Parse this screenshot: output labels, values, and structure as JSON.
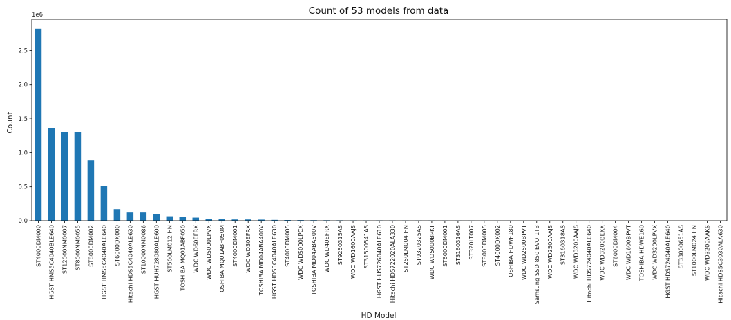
{
  "chart_data": {
    "type": "bar",
    "title": "Count of 53 models from data",
    "xlabel": "HD Model",
    "ylabel": "Count",
    "y_offset_label": "1e6",
    "ylim": [
      0,
      2.96
    ],
    "yticks": [
      0.0,
      0.5,
      1.0,
      1.5,
      2.0,
      2.5
    ],
    "ytick_labels": [
      "0.0",
      "0.5",
      "1.0",
      "1.5",
      "2.0",
      "2.5"
    ],
    "grid": false,
    "bar_color": "#1f77b4",
    "categories": [
      "ST4000DM000",
      "HGST HMS5C4040BLE640",
      "ST12000NM0007",
      "ST8000NM0055",
      "ST8000DM002",
      "HGST HMS5C4040ALE640",
      "ST6000DX000",
      "Hitachi HDS5C4040ALE630",
      "ST10000NM0086",
      "HGST HUH728080ALE600",
      "ST500LM012 HN",
      "TOSHIBA MQ01ABF050",
      "WDC WD60EFRX",
      "WDC WD5000LPVX",
      "TOSHIBA MQ01ABF050M",
      "ST4000DM001",
      "WDC WD30EFRX",
      "TOSHIBA MD04ABA400V",
      "HGST HDS5C4040ALE630",
      "ST4000DM005",
      "WDC WD5000LPCX",
      "TOSHIBA MD04ABA500V",
      "WDC WD40EFRX",
      "ST9250315AS",
      "WDC WD1600AAJS",
      "ST31500541AS",
      "HGST HUS726040ALE610",
      "Hitachi HDS722020ALA330",
      "ST250LM004 HN",
      "ST9320325AS",
      "WDC WD5000BPKT",
      "ST6000DM001",
      "ST3160316AS",
      "ST320LT007",
      "ST8000DM005",
      "ST4000DX002",
      "TOSHIBA HDWF180",
      "WDC WD2500BPVT",
      "Samsung SSD 850 EVO 1TB",
      "WDC WD2500AAJS",
      "ST3160318AS",
      "WDC WD3200AAJS",
      "Hitachi HDS724040ALE640",
      "WDC WD3200BEKX",
      "ST6000DM004",
      "WDC WD1600BPVT",
      "TOSHIBA HDWE160",
      "WDC WD3200LPVX",
      "HGST HDS724040ALE640",
      "ST33000651AS",
      "ST1000LM024 HN",
      "WDC WD3200AAKS",
      "Hitachi HDS5C3030ALA630"
    ],
    "values": [
      2.82,
      1.36,
      1.3,
      1.3,
      0.89,
      0.51,
      0.17,
      0.12,
      0.12,
      0.1,
      0.065,
      0.055,
      0.045,
      0.03,
      0.02,
      0.018,
      0.018,
      0.016,
      0.012,
      0.01,
      0.009,
      0.008,
      0.007,
      0.006,
      0.0055,
      0.005,
      0.0045,
      0.004,
      0.0035,
      0.003,
      0.0028,
      0.0025,
      0.0022,
      0.002,
      0.0015,
      0.0012,
      0.001,
      0.0008,
      0.0007,
      0.0006,
      0.0005,
      0.0004,
      0.0003,
      0.0003,
      0.0002,
      0.0002,
      0.0001,
      0.0001,
      0.0001,
      0.0001,
      0.0001,
      0.0001,
      0.0001
    ]
  }
}
